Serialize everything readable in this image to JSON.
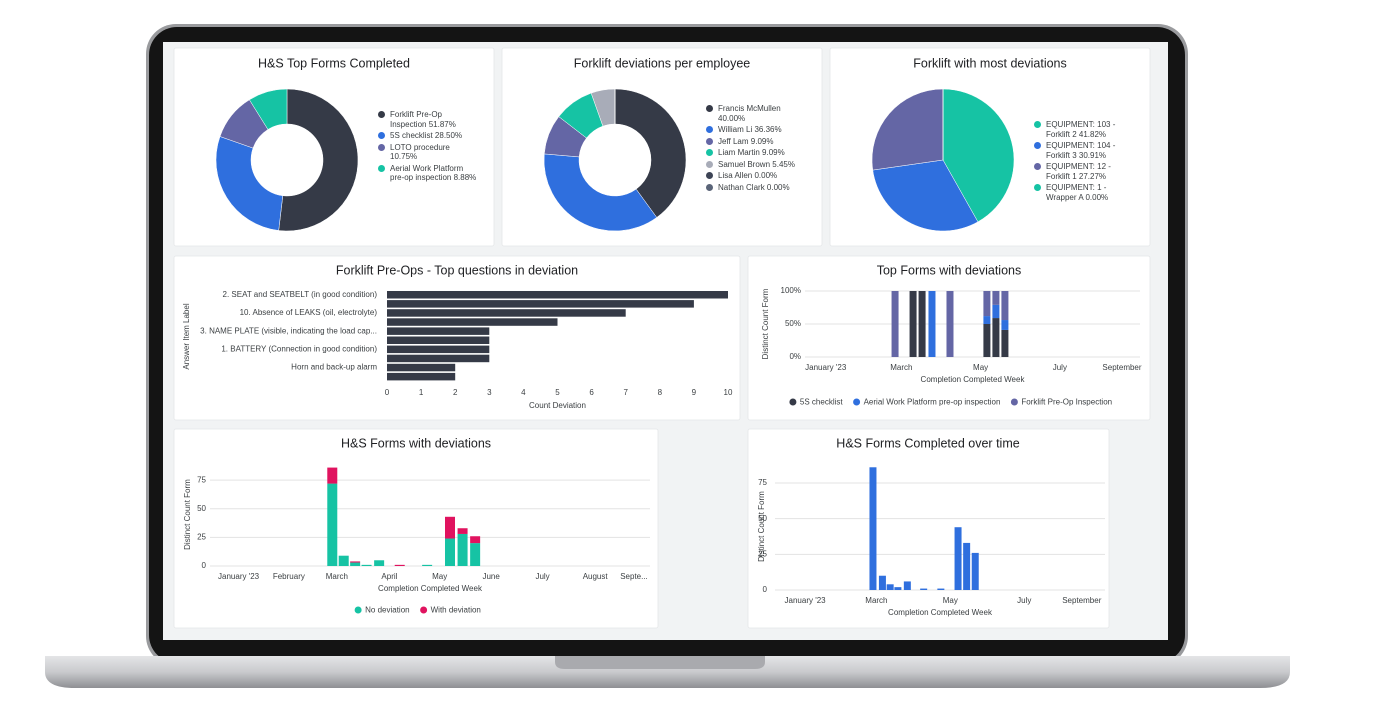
{
  "chart_data": [
    {
      "type": "donut",
      "title": "H&S Top Forms Completed",
      "categories": [
        "Forklift Pre-Op Inspection",
        "5S checklist",
        "LOTO procedure",
        "Aerial Work Platform pre-op inspection"
      ],
      "values": [
        51.87,
        28.5,
        10.75,
        8.88
      ],
      "value_labels": [
        "51.87%",
        "28.50%",
        "10.75%",
        "8.88%"
      ],
      "colors": [
        "#353a47",
        "#2f6fde",
        "#6466a5",
        "#16c3a4"
      ]
    },
    {
      "type": "donut",
      "title": "Forklift deviations per employee",
      "categories": [
        "Francis McMullen",
        "William Li",
        "Jeff Lam",
        "Liam Martin",
        "Samuel Brown",
        "Lisa Allen",
        "Nathan Clark"
      ],
      "values": [
        40.0,
        36.36,
        9.09,
        9.09,
        5.45,
        0.0,
        0.0
      ],
      "value_labels": [
        "40.00%",
        "36.36%",
        "9.09%",
        "9.09%",
        "5.45%",
        "0.00%",
        "0.00%"
      ],
      "colors": [
        "#353a47",
        "#2f6fde",
        "#6466a5",
        "#16c3a4",
        "#a8acb8",
        "#3d4455",
        "#5a6478"
      ]
    },
    {
      "type": "pie",
      "title": "Forklift with most deviations",
      "categories": [
        "EQUIPMENT: 103 - Forklift 2",
        "EQUIPMENT: 104 - Forklift 3",
        "EQUIPMENT: 12 - Forklift 1",
        "EQUIPMENT: 1 - Wrapper A"
      ],
      "values": [
        41.82,
        30.91,
        27.27,
        0.0
      ],
      "value_labels": [
        "41.82%",
        "30.91%",
        "27.27%",
        "0.00%"
      ],
      "colors": [
        "#16c3a4",
        "#2f6fde",
        "#6466a5",
        "#16c3a4"
      ]
    },
    {
      "type": "hbar",
      "title": "Forklift Pre-Ops - Top questions in deviation",
      "categories": [
        "2. SEAT and SEATBELT (in good condition)",
        null,
        "10. Absence of LEAKS (oil, electrolyte)",
        null,
        "3. NAME PLATE (visible, indicating the load cap...",
        null,
        "1. BATTERY (Connection in good condition)",
        null,
        "Horn and back-up alarm",
        null
      ],
      "values": [
        10,
        9,
        7,
        5,
        3,
        3,
        3,
        3,
        2,
        2
      ],
      "color": "#353a47",
      "xlim": [
        0,
        10
      ],
      "xticks": [
        0,
        1,
        2,
        3,
        4,
        5,
        6,
        7,
        8,
        9,
        10
      ],
      "xlabel": "Count Deviation",
      "ylabel": "Answer Item Label",
      "grid": false
    },
    {
      "type": "stacked_bar",
      "title": "Top Forms with deviations",
      "x": [
        7.7,
        9.7,
        10.7,
        11.8,
        13.8,
        17.9,
        18.9,
        19.9
      ],
      "series": [
        {
          "name": "5S checklist",
          "color": "#353a47",
          "values": [
            0,
            100,
            100,
            0,
            0,
            50,
            59,
            41
          ]
        },
        {
          "name": "Aerial Work Platform pre-op inspection",
          "color": "#2f6fde",
          "values": [
            0,
            0,
            0,
            100,
            0,
            12,
            20,
            15
          ]
        },
        {
          "name": "Forklift Pre-Op Inspection",
          "color": "#6466a5",
          "values": [
            100,
            0,
            0,
            0,
            100,
            38,
            21,
            44
          ]
        }
      ],
      "ylim": [
        0,
        100
      ],
      "yticks": [
        {
          "value": 0,
          "label": "0%"
        },
        {
          "value": 50,
          "label": "50%"
        },
        {
          "value": 100,
          "label": "100%"
        }
      ],
      "xlim": [
        -2.3,
        34.9
      ],
      "xticks": [
        {
          "value": 0,
          "label": "January '23"
        },
        {
          "value": 8.4,
          "label": "March"
        },
        {
          "value": 17.2,
          "label": "May"
        },
        {
          "value": 26,
          "label": "July"
        },
        {
          "value": 32.9,
          "label": "September"
        }
      ],
      "xlabel": "Completion Completed Week",
      "ylabel": "Distinct Count Form",
      "grid": true
    },
    {
      "type": "stacked_bar",
      "title": "H&S Forms with deviations",
      "x": [
        8.2,
        9.2,
        10.2,
        11.2,
        12.3,
        14.1,
        16.5,
        18.5,
        19.6,
        20.7
      ],
      "series": [
        {
          "name": "No deviation",
          "color": "#16c3a4",
          "values": [
            72,
            9,
            3,
            1,
            5,
            0,
            1,
            24,
            28,
            20
          ]
        },
        {
          "name": "With deviation",
          "color": "#e0135f",
          "values": [
            14,
            0,
            1,
            0,
            0,
            1,
            0,
            19,
            5,
            6
          ]
        }
      ],
      "ylim": [
        0,
        90
      ],
      "yticks": [
        0,
        25,
        50,
        75
      ],
      "xlim": [
        -2.5,
        36
      ],
      "xticks": [
        {
          "value": 0,
          "label": "January '23"
        },
        {
          "value": 4.4,
          "label": "February"
        },
        {
          "value": 8.6,
          "label": "March"
        },
        {
          "value": 13.2,
          "label": "April"
        },
        {
          "value": 17.6,
          "label": "May"
        },
        {
          "value": 22.1,
          "label": "June"
        },
        {
          "value": 26.6,
          "label": "July"
        },
        {
          "value": 31.2,
          "label": "August"
        },
        {
          "value": 34.6,
          "label": "Septe..."
        }
      ],
      "xlabel": "Completion Completed Week",
      "ylabel": "Distinct Count Form",
      "grid": true
    },
    {
      "type": "bar",
      "title": "H&S Forms Completed over time",
      "x": [
        7.9,
        9,
        9.9,
        10.8,
        11.9,
        13.8,
        15.8,
        17.8,
        18.8,
        19.8
      ],
      "values": [
        86,
        10,
        4,
        2,
        6,
        1,
        1,
        44,
        33,
        26
      ],
      "color": "#2f6fde",
      "ylim": [
        0,
        89
      ],
      "yticks": [
        0,
        25,
        50,
        75
      ],
      "xlim": [
        -3.5,
        34.9
      ],
      "xticks": [
        {
          "value": 0,
          "label": "January '23"
        },
        {
          "value": 8.3,
          "label": "March"
        },
        {
          "value": 16.9,
          "label": "May"
        },
        {
          "value": 25.5,
          "label": "July"
        },
        {
          "value": 32.2,
          "label": "September"
        }
      ],
      "xlabel": "Completion Completed Week",
      "ylabel": "Distinct Count Form",
      "grid": true
    }
  ]
}
